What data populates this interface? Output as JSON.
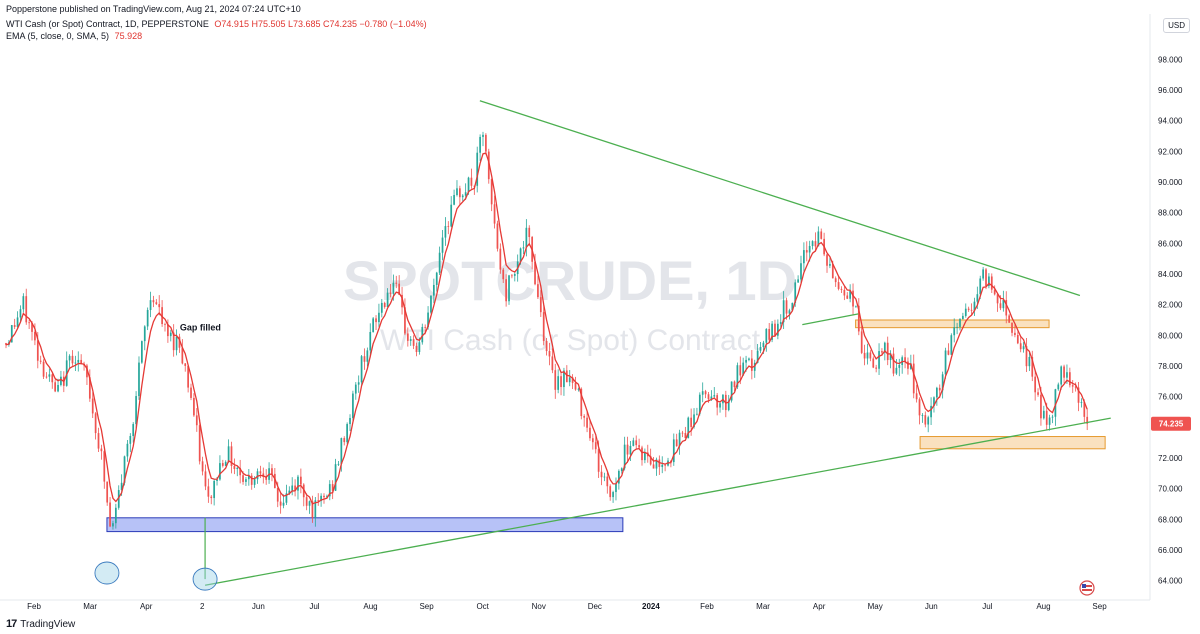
{
  "header": {
    "publisher": "Popperstone published on TradingView.com, Aug 21, 2024 07:24 UTC+10",
    "symbol": "WTI Cash (or Spot) Contract, 1D, PEPPERSTONE",
    "ohlc": "O74.915  H75.505  L73.685  C74.235  −0.780 (−1.04%)",
    "ema_label": "EMA (5, close, 0, SMA, 5)",
    "ema_value": "75.928"
  },
  "currency": "USD",
  "watermark": {
    "line1": "SPOTCRUDE, 1D",
    "line2": "WTI Cash (or Spot) Contract"
  },
  "footer": {
    "brand": "TradingView"
  },
  "colors": {
    "up": "#26a69a",
    "down": "#ef5350",
    "ema": "#e53935",
    "trendline": "#4caf50",
    "support_zone": "#7b8ff0",
    "orange_zone": "#f5c98a",
    "circle": "#9ed3e6",
    "price_tag": "#ef5350"
  },
  "chart_data": {
    "type": "candlestick",
    "title": "SPOTCRUDE, 1D",
    "ylabel": "USD",
    "ylim": [
      63,
      99
    ],
    "y_ticks": [
      "64.000",
      "66.000",
      "68.000",
      "70.000",
      "72.000",
      "74.000",
      "76.000",
      "78.000",
      "80.000",
      "82.000",
      "84.000",
      "86.000",
      "88.000",
      "90.000",
      "92.000",
      "94.000",
      "96.000",
      "98.000"
    ],
    "x_labels": [
      {
        "label": "Feb",
        "t": 0.5
      },
      {
        "label": "Mar",
        "t": 1.5
      },
      {
        "label": "Apr",
        "t": 2.5
      },
      {
        "label": "2",
        "t": 3.5
      },
      {
        "label": "Jun",
        "t": 4.5
      },
      {
        "label": "Jul",
        "t": 5.5
      },
      {
        "label": "Aug",
        "t": 6.5
      },
      {
        "label": "Sep",
        "t": 7.5
      },
      {
        "label": "Oct",
        "t": 8.5
      },
      {
        "label": "Nov",
        "t": 9.5
      },
      {
        "label": "Dec",
        "t": 10.5
      },
      {
        "label": "2024",
        "t": 11.5
      },
      {
        "label": "Feb",
        "t": 12.5
      },
      {
        "label": "Mar",
        "t": 13.5
      },
      {
        "label": "Apr",
        "t": 14.5
      },
      {
        "label": "May",
        "t": 15.5
      },
      {
        "label": "Jun",
        "t": 16.5
      },
      {
        "label": "Jul",
        "t": 17.5
      },
      {
        "label": "Aug",
        "t": 18.5
      },
      {
        "label": "Sep",
        "t": 19.5
      }
    ],
    "x_range": [
      0,
      20.4
    ],
    "price_path": [
      {
        "t": 0.0,
        "p": 79.5
      },
      {
        "t": 0.3,
        "p": 82.0
      },
      {
        "t": 0.6,
        "p": 78.5
      },
      {
        "t": 0.9,
        "p": 76.0
      },
      {
        "t": 1.2,
        "p": 79.0
      },
      {
        "t": 1.45,
        "p": 77.0
      },
      {
        "t": 1.7,
        "p": 72.0
      },
      {
        "t": 1.88,
        "p": 66.8
      },
      {
        "t": 2.05,
        "p": 70.5
      },
      {
        "t": 2.3,
        "p": 75.5
      },
      {
        "t": 2.45,
        "p": 80.0
      },
      {
        "t": 2.6,
        "p": 83.0
      },
      {
        "t": 2.85,
        "p": 80.0
      },
      {
        "t": 3.1,
        "p": 79.5
      },
      {
        "t": 3.3,
        "p": 76.0
      },
      {
        "t": 3.5,
        "p": 71.0
      },
      {
        "t": 3.6,
        "p": 69.0
      },
      {
        "t": 3.9,
        "p": 72.5
      },
      {
        "t": 4.3,
        "p": 70.5
      },
      {
        "t": 4.6,
        "p": 71.5
      },
      {
        "t": 4.9,
        "p": 69.0
      },
      {
        "t": 5.2,
        "p": 70.5
      },
      {
        "t": 5.5,
        "p": 68.5
      },
      {
        "t": 5.8,
        "p": 70.0
      },
      {
        "t": 6.1,
        "p": 74.5
      },
      {
        "t": 6.4,
        "p": 79.0
      },
      {
        "t": 6.7,
        "p": 82.0
      },
      {
        "t": 6.9,
        "p": 83.5
      },
      {
        "t": 7.15,
        "p": 80.0
      },
      {
        "t": 7.35,
        "p": 79.0
      },
      {
        "t": 7.6,
        "p": 82.5
      },
      {
        "t": 7.8,
        "p": 87.0
      },
      {
        "t": 8.1,
        "p": 89.5
      },
      {
        "t": 8.35,
        "p": 90.0
      },
      {
        "t": 8.5,
        "p": 93.5
      },
      {
        "t": 8.6,
        "p": 90.0
      },
      {
        "t": 8.75,
        "p": 86.0
      },
      {
        "t": 8.9,
        "p": 82.5
      },
      {
        "t": 9.05,
        "p": 84.5
      },
      {
        "t": 9.3,
        "p": 86.5
      },
      {
        "t": 9.45,
        "p": 83.5
      },
      {
        "t": 9.6,
        "p": 80.0
      },
      {
        "t": 9.75,
        "p": 77.0
      },
      {
        "t": 10.0,
        "p": 77.5
      },
      {
        "t": 10.2,
        "p": 76.0
      },
      {
        "t": 10.4,
        "p": 74.0
      },
      {
        "t": 10.6,
        "p": 71.0
      },
      {
        "t": 10.8,
        "p": 69.5
      },
      {
        "t": 10.95,
        "p": 71.5
      },
      {
        "t": 11.15,
        "p": 73.5
      },
      {
        "t": 11.4,
        "p": 72.0
      },
      {
        "t": 11.6,
        "p": 71.5
      },
      {
        "t": 11.9,
        "p": 72.5
      },
      {
        "t": 12.2,
        "p": 74.5
      },
      {
        "t": 12.5,
        "p": 76.5
      },
      {
        "t": 12.8,
        "p": 75.5
      },
      {
        "t": 13.05,
        "p": 77.5
      },
      {
        "t": 13.3,
        "p": 78.0
      },
      {
        "t": 13.6,
        "p": 80.0
      },
      {
        "t": 13.85,
        "p": 81.5
      },
      {
        "t": 14.1,
        "p": 83.0
      },
      {
        "t": 14.3,
        "p": 86.0
      },
      {
        "t": 14.5,
        "p": 86.5
      },
      {
        "t": 14.7,
        "p": 84.0
      },
      {
        "t": 14.9,
        "p": 83.0
      },
      {
        "t": 15.1,
        "p": 82.5
      },
      {
        "t": 15.3,
        "p": 78.5
      },
      {
        "t": 15.5,
        "p": 78.0
      },
      {
        "t": 15.7,
        "p": 79.0
      },
      {
        "t": 15.9,
        "p": 77.5
      },
      {
        "t": 16.1,
        "p": 78.5
      },
      {
        "t": 16.3,
        "p": 74.0
      },
      {
        "t": 16.5,
        "p": 75.0
      },
      {
        "t": 16.7,
        "p": 77.5
      },
      {
        "t": 16.9,
        "p": 80.5
      },
      {
        "t": 17.1,
        "p": 81.5
      },
      {
        "t": 17.3,
        "p": 82.5
      },
      {
        "t": 17.45,
        "p": 84.0
      },
      {
        "t": 17.6,
        "p": 83.0
      },
      {
        "t": 17.8,
        "p": 82.0
      },
      {
        "t": 17.95,
        "p": 80.5
      },
      {
        "t": 18.1,
        "p": 79.5
      },
      {
        "t": 18.25,
        "p": 78.0
      },
      {
        "t": 18.4,
        "p": 76.0
      },
      {
        "t": 18.55,
        "p": 74.0
      },
      {
        "t": 18.7,
        "p": 75.5
      },
      {
        "t": 18.8,
        "p": 78.0
      },
      {
        "t": 18.95,
        "p": 77.5
      },
      {
        "t": 19.1,
        "p": 76.5
      },
      {
        "t": 19.28,
        "p": 74.2
      }
    ],
    "trendlines": [
      {
        "name": "descending-resistance",
        "t1": 8.45,
        "p1": 95.3,
        "t2": 19.15,
        "p2": 82.6
      },
      {
        "name": "ascending-support",
        "t1": 3.55,
        "p1": 63.7,
        "t2": 19.7,
        "p2": 74.6
      },
      {
        "name": "april-neckline",
        "t1": 14.2,
        "p1": 80.7,
        "t2": 15.2,
        "p2": 81.4
      }
    ],
    "zones": [
      {
        "name": "support-zone-67-68",
        "t1": 1.8,
        "t2": 11.0,
        "p1": 67.2,
        "p2": 68.1,
        "style": "blue"
      },
      {
        "name": "resistance-zone-81",
        "t1": 15.15,
        "t2": 18.6,
        "p1": 80.5,
        "p2": 81.0,
        "style": "orange"
      },
      {
        "name": "support-zone-72-73",
        "t1": 16.3,
        "t2": 19.6,
        "p1": 72.6,
        "p2": 73.4,
        "style": "orange"
      }
    ],
    "circles": [
      {
        "t": 1.8,
        "p": 64.5
      },
      {
        "t": 3.55,
        "p": 64.1
      }
    ],
    "annotations": [
      {
        "text": "Gap filled",
        "t": 3.1,
        "p": 80.3
      }
    ],
    "last_price": {
      "value": 74.235,
      "label": "74.235"
    },
    "ema_period": 5
  }
}
